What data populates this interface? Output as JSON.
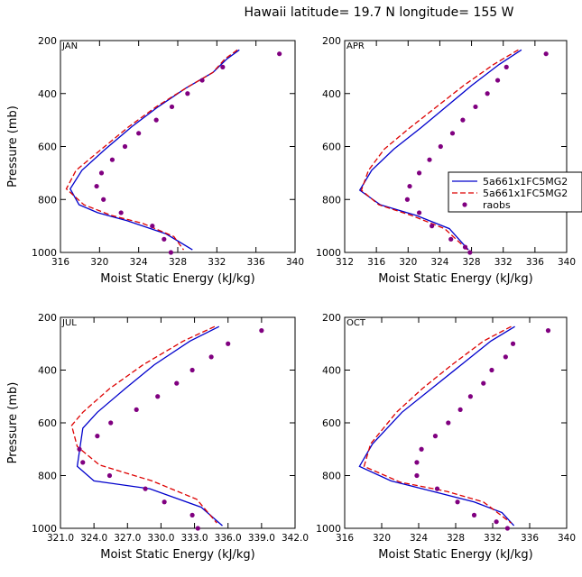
{
  "figure": {
    "title": "Hawaii  latitude= 19.7 N longitude= 155 W"
  },
  "legend_entries": [
    "5a661x1FC5MG2",
    "5a661x1FC5MG2",
    "raobs"
  ],
  "colors": {
    "series1": "#0000cc",
    "series2": "#dd0000",
    "obs": "#800080"
  },
  "chart_data": [
    {
      "type": "line",
      "title": "JAN",
      "xlabel": "Moist Static Energy (kJ/kg)",
      "ylabel": "Pressure (mb)",
      "xlim": [
        316,
        340
      ],
      "ylim": [
        1000,
        200
      ],
      "xticks": [
        316,
        320,
        324,
        328,
        332,
        336,
        340
      ],
      "xtick_labels": [
        "316",
        "320",
        "324",
        "328",
        "332",
        "336",
        "340"
      ],
      "yticks": [
        200,
        400,
        600,
        800,
        1000
      ],
      "ytick_labels": [
        "200",
        "400",
        "600",
        "800",
        "1000"
      ],
      "series": [
        {
          "name": "5a661x1FC5MG2",
          "style": "solid",
          "x": [
            334.3,
            333.0,
            331.6,
            328.8,
            326.0,
            323.3,
            320.6,
            318.2,
            317.0,
            317.9,
            319.8,
            322.8,
            326.8,
            329.5
          ],
          "y": [
            235,
            270,
            320,
            380,
            450,
            525,
            610,
            690,
            760,
            820,
            850,
            880,
            930,
            990
          ]
        },
        {
          "name": "5a661x1FC5MG2",
          "style": "dashed",
          "x": [
            334.1,
            332.8,
            331.6,
            328.8,
            325.8,
            323.0,
            320.2,
            317.6,
            316.6,
            318.4,
            321.2,
            324.4,
            327.6,
            328.6
          ],
          "y": [
            235,
            270,
            320,
            380,
            450,
            525,
            610,
            690,
            760,
            820,
            860,
            890,
            940,
            990
          ]
        },
        {
          "name": "raobs",
          "style": "markers",
          "x": [
            338.4,
            332.6,
            330.5,
            329.0,
            327.4,
            325.8,
            324.0,
            322.6,
            321.3,
            320.2,
            319.7,
            320.4,
            322.2,
            325.4,
            326.6,
            327.3
          ],
          "y": [
            250,
            300,
            350,
            400,
            450,
            500,
            550,
            600,
            650,
            700,
            750,
            800,
            850,
            900,
            950,
            1000
          ]
        }
      ]
    },
    {
      "type": "line",
      "title": "APR",
      "xlabel": "Moist Static Energy (kJ/kg)",
      "ylabel": "",
      "xlim": [
        312,
        340
      ],
      "ylim": [
        1000,
        200
      ],
      "xticks": [
        312,
        316,
        320,
        324,
        328,
        332,
        336,
        340
      ],
      "xtick_labels": [
        "312",
        "316",
        "320",
        "324",
        "328",
        "332",
        "336",
        "340"
      ],
      "yticks": [
        200,
        400,
        600,
        800,
        1000
      ],
      "ytick_labels": [
        "200",
        "400",
        "600",
        "800",
        "1000"
      ],
      "series": [
        {
          "name": "5a661x1FC5MG2",
          "style": "solid",
          "x": [
            334.3,
            331.5,
            328.0,
            324.8,
            321.6,
            318.2,
            315.4,
            313.9,
            316.5,
            321.0,
            325.2,
            327.6
          ],
          "y": [
            235,
            290,
            370,
            450,
            530,
            610,
            690,
            765,
            820,
            860,
            910,
            990
          ]
        },
        {
          "name": "5a661x1FC5MG2",
          "style": "dashed",
          "x": [
            333.9,
            330.8,
            327.0,
            323.6,
            320.2,
            317.0,
            315.0,
            314.1,
            316.3,
            320.4,
            324.6,
            327.5
          ],
          "y": [
            235,
            290,
            370,
            450,
            530,
            610,
            690,
            765,
            820,
            860,
            910,
            990
          ]
        },
        {
          "name": "raobs",
          "style": "markers",
          "x": [
            337.4,
            332.4,
            331.3,
            330.0,
            328.5,
            326.9,
            325.6,
            324.1,
            322.7,
            321.4,
            320.2,
            319.9,
            321.4,
            323.0,
            325.4,
            327.2,
            327.8
          ],
          "y": [
            250,
            300,
            350,
            400,
            450,
            500,
            550,
            600,
            650,
            700,
            750,
            800,
            850,
            900,
            950,
            980,
            1000
          ]
        }
      ]
    },
    {
      "type": "line",
      "title": "JUL",
      "xlabel": "Moist Static Energy (kJ/kg)",
      "ylabel": "Pressure (mb)",
      "xlim": [
        321.0,
        342.0
      ],
      "ylim": [
        1000,
        200
      ],
      "xticks": [
        321.0,
        324.0,
        327.0,
        330.0,
        333.0,
        336.0,
        339.0,
        342.0
      ],
      "xtick_labels": [
        "321.0",
        "324.0",
        "327.0",
        "330.0",
        "333.0",
        "336.0",
        "339.0",
        "342.0"
      ],
      "yticks": [
        200,
        400,
        600,
        800,
        1000
      ],
      "ytick_labels": [
        "200",
        "400",
        "600",
        "800",
        "1000"
      ],
      "series": [
        {
          "name": "5a661x1FC5MG2",
          "style": "solid",
          "x": [
            335.2,
            332.6,
            329.4,
            326.8,
            324.3,
            323.0,
            322.5,
            324.0,
            329.0,
            333.6,
            335.5
          ],
          "y": [
            235,
            290,
            380,
            470,
            560,
            620,
            765,
            820,
            850,
            920,
            990
          ]
        },
        {
          "name": "5a661x1FC5MG2",
          "style": "dashed",
          "x": [
            334.8,
            332.0,
            328.4,
            325.4,
            323.0,
            322.0,
            322.5,
            324.5,
            329.2,
            333.2,
            335.0
          ],
          "y": [
            235,
            290,
            380,
            470,
            560,
            610,
            690,
            760,
            820,
            890,
            980
          ]
        },
        {
          "name": "raobs",
          "style": "markers",
          "x": [
            339.0,
            336.0,
            334.5,
            332.8,
            331.4,
            329.7,
            327.8,
            325.5,
            324.3,
            322.7,
            323.0,
            325.4,
            328.6,
            330.3,
            332.8,
            333.3
          ],
          "y": [
            250,
            300,
            350,
            400,
            450,
            500,
            550,
            600,
            650,
            700,
            750,
            800,
            850,
            900,
            950,
            1000
          ]
        }
      ]
    },
    {
      "type": "line",
      "title": "OCT",
      "xlabel": "Moist Static Energy (kJ/kg)",
      "ylabel": "",
      "xlim": [
        316,
        340
      ],
      "ylim": [
        1000,
        200
      ],
      "xticks": [
        316,
        320,
        324,
        328,
        332,
        336,
        340
      ],
      "xtick_labels": [
        "316",
        "320",
        "324",
        "328",
        "332",
        "336",
        "340"
      ],
      "yticks": [
        200,
        400,
        600,
        800,
        1000
      ],
      "ytick_labels": [
        "200",
        "400",
        "600",
        "800",
        "1000"
      ],
      "series": [
        {
          "name": "5a661x1FC5MG2",
          "style": "solid",
          "x": [
            334.4,
            331.8,
            328.6,
            325.4,
            322.2,
            319.0,
            317.6,
            321.0,
            325.5,
            330.0,
            333.0,
            334.3
          ],
          "y": [
            235,
            290,
            380,
            470,
            560,
            680,
            765,
            820,
            860,
            900,
            940,
            990
          ]
        },
        {
          "name": "5a661x1FC5MG2",
          "style": "dashed",
          "x": [
            334.0,
            331.0,
            327.6,
            324.4,
            321.6,
            318.8,
            318.1,
            322.0,
            327.0,
            331.0,
            334.0
          ],
          "y": [
            235,
            290,
            380,
            470,
            560,
            680,
            765,
            825,
            860,
            900,
            980
          ]
        },
        {
          "name": "raobs",
          "style": "markers",
          "x": [
            338.0,
            334.2,
            333.4,
            331.9,
            331.0,
            329.6,
            328.5,
            327.2,
            325.8,
            324.3,
            323.8,
            323.8,
            326.0,
            328.2,
            330.0,
            332.4,
            333.6
          ],
          "y": [
            250,
            300,
            350,
            400,
            450,
            500,
            550,
            600,
            650,
            700,
            750,
            800,
            850,
            900,
            950,
            975,
            1000
          ]
        }
      ]
    }
  ]
}
